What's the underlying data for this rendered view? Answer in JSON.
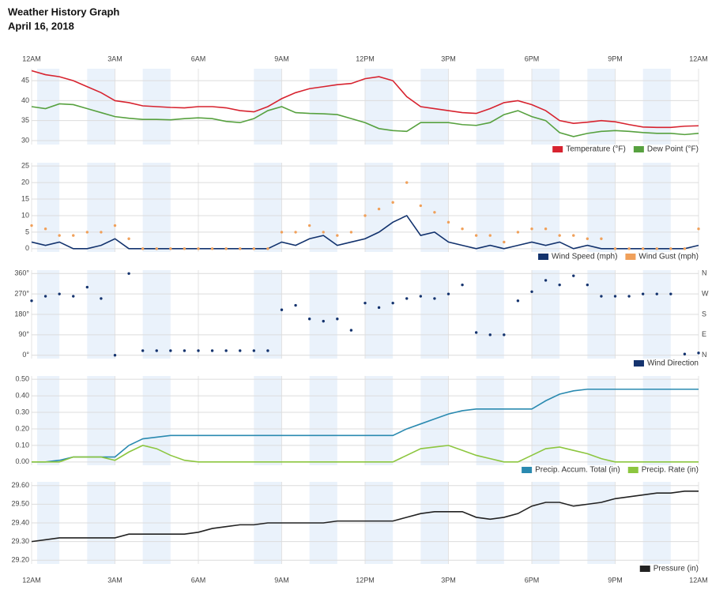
{
  "header": {
    "title": "Weather History Graph",
    "date": "April 16, 2018"
  },
  "charts": [
    {
      "type": "line",
      "xlim": [
        0,
        24
      ],
      "ylim": [
        29,
        48
      ],
      "yticks": [
        30,
        35,
        40,
        45
      ],
      "xticks": [
        {
          "value": 0,
          "label": "12AM"
        },
        {
          "value": 3,
          "label": "3AM"
        },
        {
          "value": 6,
          "label": "6AM"
        },
        {
          "value": 9,
          "label": "9AM"
        },
        {
          "value": 12,
          "label": "12PM"
        },
        {
          "value": 15,
          "label": "3PM"
        },
        {
          "value": 18,
          "label": "6PM"
        },
        {
          "value": 21,
          "label": "9PM"
        },
        {
          "value": 24,
          "label": "12AM"
        }
      ],
      "x": [
        0,
        0.5,
        1,
        1.5,
        2,
        2.5,
        3,
        3.5,
        4,
        4.5,
        5,
        5.5,
        6,
        6.5,
        7,
        7.5,
        8,
        8.5,
        9,
        9.5,
        10,
        10.5,
        11,
        11.5,
        12,
        12.5,
        13,
        13.5,
        14,
        14.5,
        15,
        15.5,
        16,
        16.5,
        17,
        17.5,
        18,
        18.5,
        19,
        19.5,
        20,
        20.5,
        21,
        21.5,
        22,
        22.5,
        23,
        23.5,
        24
      ],
      "series": [
        {
          "name": "Temperature (°F)",
          "color": "#d7232f",
          "style": "line",
          "values": [
            47.5,
            46.5,
            46,
            45,
            43.5,
            42,
            40,
            39.5,
            38.7,
            38.5,
            38.3,
            38.2,
            38.5,
            38.5,
            38.2,
            37.5,
            37.2,
            38.5,
            40.5,
            42,
            43,
            43.5,
            44,
            44.3,
            45.5,
            46,
            45,
            41,
            38.5,
            38,
            37.5,
            37,
            36.8,
            38,
            39.5,
            40,
            39,
            37.5,
            35,
            34.3,
            34.6,
            35,
            34.7,
            34,
            33.4,
            33.3,
            33.3,
            33.6,
            33.7
          ]
        },
        {
          "name": "Dew Point (°F)",
          "color": "#57a13f",
          "style": "line",
          "values": [
            38.5,
            38,
            39.2,
            39,
            38,
            37,
            36,
            35.6,
            35.3,
            35.3,
            35.2,
            35.5,
            35.7,
            35.5,
            34.8,
            34.5,
            35.5,
            37.5,
            38.5,
            37,
            36.8,
            36.7,
            36.5,
            35.5,
            34.5,
            33,
            32.5,
            32.3,
            34.5,
            34.5,
            34.5,
            34,
            33.8,
            34.5,
            36.5,
            37.5,
            36,
            35,
            32,
            31,
            31.8,
            32.3,
            32.5,
            32.3,
            32,
            31.8,
            31.8,
            31.5,
            31.8
          ]
        }
      ]
    },
    {
      "type": "line",
      "xlim": [
        0,
        24
      ],
      "ylim": [
        -1,
        26
      ],
      "yticks": [
        0,
        5,
        10,
        15,
        20,
        25
      ],
      "x": [
        0,
        0.5,
        1,
        1.5,
        2,
        2.5,
        3,
        3.5,
        4,
        4.5,
        5,
        5.5,
        6,
        6.5,
        7,
        7.5,
        8,
        8.5,
        9,
        9.5,
        10,
        10.5,
        11,
        11.5,
        12,
        12.5,
        13,
        13.5,
        14,
        14.5,
        15,
        15.5,
        16,
        16.5,
        17,
        17.5,
        18,
        18.5,
        19,
        19.5,
        20,
        20.5,
        21,
        21.5,
        22,
        22.5,
        23,
        23.5,
        24
      ],
      "series": [
        {
          "name": "Wind Speed (mph)",
          "color": "#12326d",
          "style": "line",
          "values": [
            2,
            1,
            2,
            0,
            0,
            1,
            3,
            0,
            0,
            0,
            0,
            0,
            0,
            0,
            0,
            0,
            0,
            0,
            2,
            1,
            3,
            4,
            1,
            2,
            3,
            5,
            8,
            10,
            4,
            5,
            2,
            1,
            0,
            1,
            0,
            1,
            2,
            1,
            2,
            0,
            1,
            0,
            0,
            0,
            0,
            0,
            0,
            0,
            1
          ]
        },
        {
          "name": "Wind Gust (mph)",
          "color": "#f0a05a",
          "style": "dots",
          "values": [
            7,
            6,
            4,
            4,
            5,
            5,
            7,
            3,
            0,
            0,
            0,
            0,
            0,
            0,
            0,
            0,
            0,
            0,
            5,
            5,
            7,
            5,
            4,
            5,
            10,
            12,
            14,
            20,
            13,
            11,
            8,
            6,
            4,
            4,
            2,
            5,
            6,
            6,
            4,
            4,
            3,
            3,
            0,
            0,
            0,
            0,
            0,
            0,
            6
          ]
        }
      ]
    },
    {
      "type": "scatter",
      "xlim": [
        0,
        24
      ],
      "ylim": [
        -15,
        375
      ],
      "yticks": [
        {
          "value": 0,
          "label": "0°"
        },
        {
          "value": 90,
          "label": "90°"
        },
        {
          "value": 180,
          "label": "180°"
        },
        {
          "value": 270,
          "label": "270°"
        },
        {
          "value": 360,
          "label": "360°"
        }
      ],
      "y2lim": [
        -15,
        375
      ],
      "y2ticks": [
        {
          "value": 0,
          "label": "N"
        },
        {
          "value": 90,
          "label": "E"
        },
        {
          "value": 180,
          "label": "S"
        },
        {
          "value": 270,
          "label": "W"
        },
        {
          "value": 360,
          "label": "N"
        }
      ],
      "x": [
        0,
        0.5,
        1,
        1.5,
        2,
        2.5,
        3,
        3.5,
        4,
        4.5,
        5,
        5.5,
        6,
        6.5,
        7,
        7.5,
        8,
        8.5,
        9,
        9.5,
        10,
        10.5,
        11,
        11.5,
        12,
        12.5,
        13,
        13.5,
        14,
        14.5,
        15,
        15.5,
        16,
        16.5,
        17,
        17.5,
        18,
        18.5,
        19,
        19.5,
        20,
        20.5,
        21,
        21.5,
        22,
        22.5,
        23,
        23.5,
        24
      ],
      "series": [
        {
          "name": "Wind Direction",
          "color": "#14336e",
          "style": "dots",
          "values": [
            240,
            260,
            270,
            260,
            300,
            250,
            0,
            360,
            20,
            20,
            20,
            20,
            20,
            20,
            20,
            20,
            20,
            20,
            200,
            220,
            160,
            150,
            160,
            110,
            230,
            210,
            230,
            250,
            260,
            250,
            270,
            310,
            100,
            90,
            90,
            240,
            280,
            330,
            310,
            350,
            310,
            260,
            260,
            260,
            270,
            270,
            270,
            5,
            10
          ]
        }
      ]
    },
    {
      "type": "line",
      "xlim": [
        0,
        24
      ],
      "ylim": [
        -0.02,
        0.52
      ],
      "yticks": [
        {
          "value": 0,
          "label": "0.00"
        },
        {
          "value": 0.1,
          "label": "0.10"
        },
        {
          "value": 0.2,
          "label": "0.20"
        },
        {
          "value": 0.3,
          "label": "0.30"
        },
        {
          "value": 0.4,
          "label": "0.40"
        },
        {
          "value": 0.5,
          "label": "0.50"
        }
      ],
      "x": [
        0,
        0.5,
        1,
        1.5,
        2,
        2.5,
        3,
        3.5,
        4,
        4.5,
        5,
        5.5,
        6,
        6.5,
        7,
        7.5,
        8,
        8.5,
        9,
        9.5,
        10,
        10.5,
        11,
        11.5,
        12,
        12.5,
        13,
        13.5,
        14,
        14.5,
        15,
        15.5,
        16,
        16.5,
        17,
        17.5,
        18,
        18.5,
        19,
        19.5,
        20,
        20.5,
        21,
        21.5,
        22,
        22.5,
        23,
        23.5,
        24
      ],
      "series": [
        {
          "name": "Precip. Accum. Total (in)",
          "color": "#2a8ab0",
          "style": "line",
          "values": [
            0,
            0,
            0.01,
            0.03,
            0.03,
            0.03,
            0.03,
            0.1,
            0.14,
            0.15,
            0.16,
            0.16,
            0.16,
            0.16,
            0.16,
            0.16,
            0.16,
            0.16,
            0.16,
            0.16,
            0.16,
            0.16,
            0.16,
            0.16,
            0.16,
            0.16,
            0.16,
            0.2,
            0.23,
            0.26,
            0.29,
            0.31,
            0.32,
            0.32,
            0.32,
            0.32,
            0.32,
            0.37,
            0.41,
            0.43,
            0.44,
            0.44,
            0.44,
            0.44,
            0.44,
            0.44,
            0.44,
            0.44,
            0.44
          ]
        },
        {
          "name": "Precip. Rate (in)",
          "color": "#8cc63f",
          "style": "line",
          "values": [
            0,
            0,
            0,
            0.03,
            0.03,
            0.03,
            0.01,
            0.06,
            0.1,
            0.08,
            0.04,
            0.01,
            0,
            0,
            0,
            0,
            0,
            0,
            0,
            0,
            0,
            0,
            0,
            0,
            0,
            0,
            0,
            0.04,
            0.08,
            0.09,
            0.1,
            0.07,
            0.04,
            0.02,
            0,
            0,
            0.04,
            0.08,
            0.09,
            0.07,
            0.05,
            0.02,
            0,
            0,
            0,
            0,
            0,
            0,
            0
          ]
        }
      ]
    },
    {
      "type": "line",
      "xlim": [
        0,
        24
      ],
      "ylim": [
        29.18,
        29.62
      ],
      "yticks": [
        {
          "value": 29.2,
          "label": "29.20"
        },
        {
          "value": 29.3,
          "label": "29.30"
        },
        {
          "value": 29.4,
          "label": "29.40"
        },
        {
          "value": 29.5,
          "label": "29.50"
        },
        {
          "value": 29.6,
          "label": "29.60"
        }
      ],
      "xticks": [
        {
          "value": 0,
          "label": "12AM"
        },
        {
          "value": 3,
          "label": "3AM"
        },
        {
          "value": 6,
          "label": "6AM"
        },
        {
          "value": 9,
          "label": "9AM"
        },
        {
          "value": 12,
          "label": "12PM"
        },
        {
          "value": 15,
          "label": "3PM"
        },
        {
          "value": 18,
          "label": "6PM"
        },
        {
          "value": 21,
          "label": "9PM"
        },
        {
          "value": 24,
          "label": "12AM"
        }
      ],
      "x": [
        0,
        0.5,
        1,
        1.5,
        2,
        2.5,
        3,
        3.5,
        4,
        4.5,
        5,
        5.5,
        6,
        6.5,
        7,
        7.5,
        8,
        8.5,
        9,
        9.5,
        10,
        10.5,
        11,
        11.5,
        12,
        12.5,
        13,
        13.5,
        14,
        14.5,
        15,
        15.5,
        16,
        16.5,
        17,
        17.5,
        18,
        18.5,
        19,
        19.5,
        20,
        20.5,
        21,
        21.5,
        22,
        22.5,
        23,
        23.5,
        24
      ],
      "series": [
        {
          "name": "Pressure (in)",
          "color": "#222222",
          "style": "line",
          "values": [
            29.3,
            29.31,
            29.32,
            29.32,
            29.32,
            29.32,
            29.32,
            29.34,
            29.34,
            29.34,
            29.34,
            29.34,
            29.35,
            29.37,
            29.38,
            29.39,
            29.39,
            29.4,
            29.4,
            29.4,
            29.4,
            29.4,
            29.41,
            29.41,
            29.41,
            29.41,
            29.41,
            29.43,
            29.45,
            29.46,
            29.46,
            29.46,
            29.43,
            29.42,
            29.43,
            29.45,
            29.49,
            29.51,
            29.51,
            29.49,
            29.5,
            29.51,
            29.53,
            29.54,
            29.55,
            29.56,
            29.56,
            29.57,
            29.57
          ]
        }
      ]
    }
  ]
}
